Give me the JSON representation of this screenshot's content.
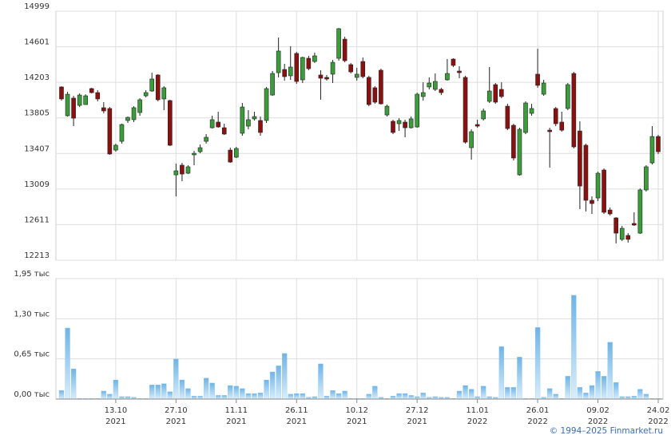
{
  "chart_data": [
    {
      "type": "candlestick",
      "up_color": "#3a9d3a",
      "down_color": "#8b1010",
      "grid": true,
      "ylim": [
        12213,
        14999
      ],
      "yticks": [
        12213,
        12611,
        13009,
        13407,
        13805,
        14203,
        14601,
        14999
      ],
      "open": [
        14151,
        13829,
        14026,
        13945,
        13954,
        14133,
        14088,
        13919,
        13910,
        13445,
        13543,
        13776,
        13785,
        13865,
        14052,
        14106,
        14285,
        14017,
        13999,
        13168,
        13276,
        13186,
        13392,
        13427,
        13543,
        13695,
        13758,
        13695,
        13445,
        13365,
        13633,
        13713,
        13794,
        13776,
        13776,
        14061,
        14311,
        14347,
        14276,
        14526,
        14231,
        14472,
        14436,
        14285,
        14258,
        14294,
        14472,
        14686,
        14401,
        14258,
        14436,
        14258,
        14142,
        14338,
        13838,
        13767,
        13740,
        13758,
        13695,
        13704,
        14044,
        14151,
        14124,
        14124,
        14231,
        14463,
        14329,
        14258,
        13472,
        13731,
        13794,
        13990,
        14177,
        14124,
        13936,
        13722,
        13168,
        13642,
        13856,
        14294,
        14070,
        13668,
        13910,
        13758,
        13910,
        14302,
        13659,
        13499,
        12883,
        12909,
        13222,
        12775,
        12686,
        12446,
        12490,
        12624,
        12516,
        12999,
        13302,
        13597
      ],
      "high": [
        14160,
        14097,
        14052,
        14079,
        14070,
        14142,
        14115,
        13981,
        13927,
        13517,
        13740,
        13820,
        13936,
        14026,
        14115,
        14311,
        14294,
        14160,
        14008,
        13293,
        13302,
        13276,
        13436,
        13508,
        13624,
        13829,
        13874,
        13740,
        13472,
        13481,
        13972,
        13892,
        13874,
        13820,
        14151,
        14329,
        14704,
        14410,
        14606,
        14544,
        14490,
        14499,
        14535,
        14338,
        14285,
        14454,
        14811,
        14713,
        14419,
        14365,
        14481,
        14276,
        14160,
        14356,
        13954,
        13785,
        13802,
        13785,
        13820,
        14088,
        14204,
        14258,
        14302,
        14142,
        14463,
        14472,
        14383,
        14276,
        13677,
        13785,
        13910,
        14374,
        14195,
        14204,
        13963,
        13740,
        13695,
        13990,
        13963,
        14579,
        14231,
        13695,
        13927,
        13874,
        14195,
        14320,
        13767,
        13517,
        12927,
        13204,
        13240,
        12802,
        12695,
        12597,
        12516,
        12749,
        13016,
        13276,
        13713,
        13615
      ],
      "low": [
        13999,
        13820,
        13713,
        13927,
        13954,
        14079,
        13990,
        13856,
        13392,
        13427,
        13517,
        13749,
        13758,
        13829,
        14035,
        14097,
        13990,
        13892,
        13490,
        12927,
        13097,
        13177,
        13276,
        13409,
        13517,
        13686,
        13695,
        13615,
        13302,
        13356,
        13606,
        13677,
        13776,
        13606,
        13749,
        14052,
        14258,
        14222,
        14231,
        14186,
        14195,
        14338,
        14419,
        14008,
        14222,
        14195,
        14445,
        14427,
        14302,
        14222,
        14249,
        13936,
        13963,
        13954,
        13820,
        13624,
        13659,
        13588,
        13686,
        13695,
        13999,
        14124,
        14106,
        14061,
        14222,
        14374,
        14249,
        13517,
        13338,
        13695,
        13776,
        13972,
        13963,
        14026,
        13668,
        13329,
        13159,
        13624,
        13829,
        14142,
        14052,
        13249,
        13713,
        13651,
        13892,
        13463,
        12784,
        12758,
        12731,
        12874,
        12731,
        12713,
        12401,
        12428,
        12410,
        12597,
        12508,
        12981,
        13284,
        13401
      ],
      "close": [
        14017,
        14070,
        13802,
        14061,
        14052,
        14088,
        14017,
        13883,
        13401,
        13499,
        13731,
        13811,
        13919,
        14008,
        14088,
        14240,
        14008,
        14142,
        13499,
        13213,
        13177,
        13258,
        13409,
        13472,
        13588,
        13785,
        13704,
        13624,
        13311,
        13463,
        13927,
        13785,
        13820,
        13642,
        14133,
        14302,
        14553,
        14267,
        14374,
        14213,
        14481,
        14356,
        14499,
        14249,
        14240,
        14427,
        14803,
        14445,
        14320,
        14294,
        14267,
        13954,
        13981,
        13963,
        13936,
        13642,
        13776,
        13695,
        13794,
        14070,
        14088,
        14195,
        14213,
        14088,
        14302,
        14392,
        14311,
        13534,
        13651,
        13713,
        13883,
        14106,
        13981,
        14044,
        13686,
        13356,
        13677,
        13972,
        13910,
        14169,
        14195,
        13651,
        13740,
        13668,
        14177,
        13481,
        13043,
        12883,
        12847,
        13186,
        12749,
        12731,
        12516,
        12570,
        12446,
        12606,
        12999,
        13258,
        13597,
        13427
      ]
    },
    {
      "type": "bar",
      "color": "#8cc4ec",
      "grid": true,
      "ylim": [
        0,
        1.95
      ],
      "yticks": [
        {
          "value": 0,
          "label": "0,00 тыс"
        },
        {
          "value": 0.65,
          "label": "0,65 тыс"
        },
        {
          "value": 1.3,
          "label": "1,30 тыс"
        },
        {
          "value": 1.95,
          "label": "1,95 тыс"
        }
      ],
      "categories": [
        null,
        null,
        null,
        null,
        null,
        null,
        null,
        null,
        null,
        "13.10\n2021",
        null,
        null,
        null,
        null,
        null,
        null,
        null,
        null,
        null,
        "27.10\n2021",
        null,
        null,
        null,
        null,
        null,
        null,
        null,
        null,
        null,
        "11.11\n2021",
        null,
        null,
        null,
        null,
        null,
        null,
        null,
        null,
        null,
        "26.11\n2021",
        null,
        null,
        null,
        null,
        null,
        null,
        null,
        null,
        null,
        "10.12\n2021",
        null,
        null,
        null,
        null,
        null,
        null,
        null,
        null,
        null,
        "27.12\n2021",
        null,
        null,
        null,
        null,
        null,
        null,
        null,
        null,
        null,
        "11.01\n2022",
        null,
        null,
        null,
        null,
        null,
        null,
        null,
        null,
        null,
        "26.01\n2022",
        null,
        null,
        null,
        null,
        null,
        null,
        null,
        null,
        null,
        "09.02\n2022",
        null,
        null,
        null,
        null,
        null,
        null,
        null,
        null,
        null,
        "24.02\n2022"
      ],
      "values": [
        0.14,
        1.15,
        0.49,
        0.01,
        0.01,
        0.01,
        0.01,
        0.13,
        0.08,
        0.31,
        0.04,
        0.04,
        0.03,
        0.01,
        0.01,
        0.23,
        0.23,
        0.25,
        0.12,
        0.65,
        0.31,
        0.17,
        0.05,
        0.05,
        0.34,
        0.26,
        0.06,
        0.06,
        0.22,
        0.21,
        0.17,
        0.09,
        0.09,
        0.1,
        0.31,
        0.44,
        0.54,
        0.74,
        0.08,
        0.09,
        0.09,
        0.03,
        0.04,
        0.57,
        0.05,
        0.14,
        0.09,
        0.13,
        0.01,
        0.01,
        0.01,
        0.08,
        0.21,
        0.03,
        0.01,
        0.05,
        0.09,
        0.09,
        0.06,
        0.04,
        0.1,
        0.03,
        0.04,
        0.03,
        0.03,
        0.01,
        0.13,
        0.22,
        0.16,
        0.04,
        0.21,
        0.04,
        0.03,
        0.85,
        0.19,
        0.19,
        0.68,
        0.01,
        0.01,
        1.16,
        0.03,
        0.17,
        0.08,
        0.01,
        0.37,
        1.68,
        0.19,
        0.1,
        0.22,
        0.45,
        0.37,
        0.92,
        0.27,
        0.04,
        0.04,
        0.05,
        0.16,
        0.08,
        0.01,
        0.01
      ]
    }
  ],
  "footer": "© 1994–2025 Finmarket.ru"
}
